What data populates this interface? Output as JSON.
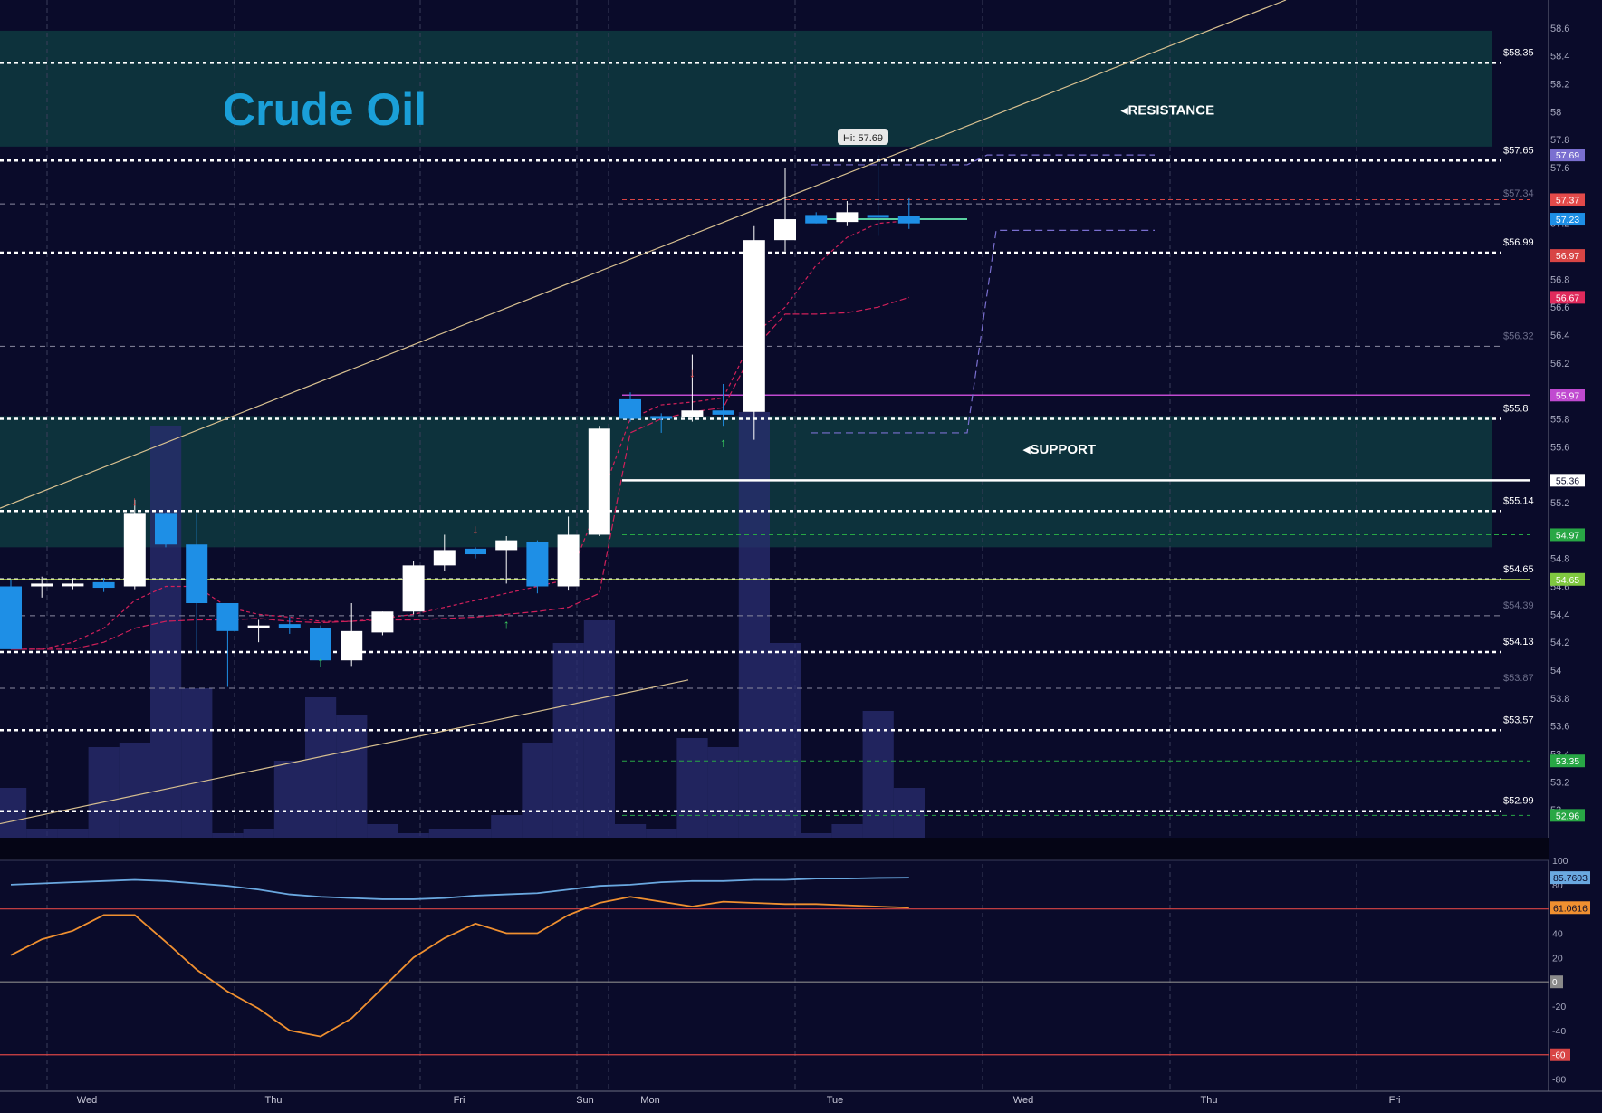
{
  "title": "Crude Oil",
  "zones": [
    {
      "label": "RESISTANCE",
      "from": 57.75,
      "to": 58.58,
      "fill": "#0e3a40"
    },
    {
      "label": "SUPPORT",
      "from": 54.88,
      "to": 55.82,
      "fill": "#0e3a40"
    }
  ],
  "price_axis": {
    "min": 52.8,
    "max": 58.8,
    "ticks": [
      53,
      53.2,
      53.4,
      53.6,
      53.8,
      54,
      54.2,
      54.4,
      54.6,
      54.8,
      55.2,
      55.6,
      55.8,
      56.2,
      56.4,
      56.6,
      56.8,
      57.2,
      57.6,
      57.8,
      58,
      58.2,
      58.4,
      58.6
    ]
  },
  "level_lines": [
    {
      "value": 58.35,
      "label": "$58.35",
      "style": "dotted-white"
    },
    {
      "value": 57.65,
      "label": "$57.65",
      "style": "dotted-white"
    },
    {
      "value": 56.99,
      "label": "$56.99",
      "style": "dotted-white"
    },
    {
      "value": 55.8,
      "label": "$55.8",
      "style": "dotted-white"
    },
    {
      "value": 55.14,
      "label": "$55.14",
      "style": "dotted-white"
    },
    {
      "value": 54.65,
      "label": "$54.65",
      "style": "dotted-white"
    },
    {
      "value": 54.13,
      "label": "$54.13",
      "style": "dotted-white"
    },
    {
      "value": 53.57,
      "label": "$53.57",
      "style": "dotted-white"
    },
    {
      "value": 52.99,
      "label": "$52.99",
      "style": "dotted-white"
    },
    {
      "value": 57.34,
      "label": "$57.34",
      "style": "dashed-gray"
    },
    {
      "value": 56.32,
      "label": "$56.32",
      "style": "dashed-gray"
    },
    {
      "value": 54.39,
      "label": "$54.39",
      "style": "dashed-gray"
    },
    {
      "value": 53.87,
      "label": "$53.87",
      "style": "dashed-gray"
    }
  ],
  "price_tags": [
    {
      "value": 57.69,
      "label": "57.69",
      "color": "#7a6fd0"
    },
    {
      "value": 57.37,
      "label": "57.37",
      "color": "#e34a4a"
    },
    {
      "value": 57.23,
      "label": "57.23",
      "color": "#1e8fe6"
    },
    {
      "value": 56.97,
      "label": "56.97",
      "color": "#d84545"
    },
    {
      "value": 56.67,
      "label": "56.67",
      "color": "#e02a5c"
    },
    {
      "value": 55.97,
      "label": "55.97",
      "color": "#c04ad0"
    },
    {
      "value": 55.36,
      "label": "55.36",
      "color": "#0a0b2a"
    },
    {
      "value": 54.97,
      "label": "54.97",
      "color": "#28a745"
    },
    {
      "value": 54.65,
      "label": "54.65",
      "color": "#7fc840"
    },
    {
      "value": 53.35,
      "label": "53.35",
      "color": "#28a745"
    },
    {
      "value": 52.96,
      "label": "52.96",
      "color": "#28a745"
    }
  ],
  "high_label": "Hi: 57.69",
  "time_labels": [
    "Wed",
    "Thu",
    "Fri",
    "Sun",
    "Mon",
    "Tue",
    "Wed",
    "Thu",
    "Fri"
  ],
  "chart_data": {
    "type": "candlestick",
    "candles": [
      {
        "o": 54.6,
        "h": 54.65,
        "l": 54.15,
        "c": 54.15
      },
      {
        "o": 54.6,
        "h": 54.67,
        "l": 54.52,
        "c": 54.62
      },
      {
        "o": 54.62,
        "h": 54.66,
        "l": 54.58,
        "c": 54.62
      },
      {
        "o": 54.63,
        "h": 54.66,
        "l": 54.56,
        "c": 54.59
      },
      {
        "o": 54.6,
        "h": 55.22,
        "l": 54.58,
        "c": 55.12
      },
      {
        "o": 55.12,
        "h": 55.13,
        "l": 54.88,
        "c": 54.9
      },
      {
        "o": 54.9,
        "h": 55.12,
        "l": 54.12,
        "c": 54.48
      },
      {
        "o": 54.48,
        "h": 54.48,
        "l": 53.88,
        "c": 54.28
      },
      {
        "o": 54.3,
        "h": 54.36,
        "l": 54.2,
        "c": 54.32
      },
      {
        "o": 54.33,
        "h": 54.38,
        "l": 54.26,
        "c": 54.3
      },
      {
        "o": 54.3,
        "h": 54.32,
        "l": 54.02,
        "c": 54.07
      },
      {
        "o": 54.07,
        "h": 54.48,
        "l": 54.03,
        "c": 54.28
      },
      {
        "o": 54.27,
        "h": 54.42,
        "l": 54.25,
        "c": 54.42
      },
      {
        "o": 54.42,
        "h": 54.78,
        "l": 54.4,
        "c": 54.75
      },
      {
        "o": 54.75,
        "h": 54.97,
        "l": 54.71,
        "c": 54.86
      },
      {
        "o": 54.87,
        "h": 54.88,
        "l": 54.8,
        "c": 54.83
      },
      {
        "o": 54.86,
        "h": 54.96,
        "l": 54.62,
        "c": 54.93
      },
      {
        "o": 54.92,
        "h": 54.93,
        "l": 54.55,
        "c": 54.6
      },
      {
        "o": 54.6,
        "h": 55.1,
        "l": 54.57,
        "c": 54.97
      },
      {
        "o": 54.97,
        "h": 55.75,
        "l": 54.96,
        "c": 55.73
      },
      {
        "o": 55.94,
        "h": 55.99,
        "l": 55.78,
        "c": 55.8
      },
      {
        "o": 55.82,
        "h": 55.84,
        "l": 55.7,
        "c": 55.8
      },
      {
        "o": 55.81,
        "h": 56.26,
        "l": 55.78,
        "c": 55.86
      },
      {
        "o": 55.86,
        "h": 56.05,
        "l": 55.75,
        "c": 55.83
      },
      {
        "o": 55.85,
        "h": 57.18,
        "l": 55.65,
        "c": 57.08
      },
      {
        "o": 57.08,
        "h": 57.6,
        "l": 57.0,
        "c": 57.23
      },
      {
        "o": 57.26,
        "h": 57.28,
        "l": 57.2,
        "c": 57.2
      },
      {
        "o": 57.21,
        "h": 57.36,
        "l": 57.18,
        "c": 57.28
      },
      {
        "o": 57.26,
        "h": 57.69,
        "l": 57.11,
        "c": 57.24
      },
      {
        "o": 57.25,
        "h": 57.38,
        "l": 57.16,
        "c": 57.2
      }
    ],
    "volume": [
      55,
      10,
      10,
      100,
      105,
      455,
      165,
      5,
      10,
      85,
      155,
      135,
      15,
      5,
      10,
      10,
      25,
      105,
      215,
      240,
      15,
      10,
      110,
      100,
      470,
      215,
      5,
      15,
      140,
      55
    ],
    "oscillator_slow": {
      "name": "85.7603",
      "values": [
        80,
        81,
        82,
        83,
        84,
        83,
        81,
        79,
        76,
        72,
        70,
        69,
        68,
        68,
        69,
        71,
        72,
        73,
        76,
        79,
        80,
        82,
        83,
        83,
        84,
        84,
        85,
        85,
        85.5,
        85.76
      ]
    },
    "oscillator_fast": {
      "name": "61.0616",
      "values": [
        22,
        35,
        42,
        55,
        55,
        33,
        10,
        -8,
        -22,
        -40,
        -45,
        -30,
        -5,
        20,
        36,
        48,
        40,
        40,
        55,
        65,
        70,
        66,
        62,
        66,
        65,
        64,
        64,
        63,
        62,
        61.06
      ]
    },
    "oscillator_levels": [
      {
        "value": 60,
        "color": "#d84545",
        "label": ""
      },
      {
        "value": 0,
        "color": "#8a8a8a",
        "label": "0"
      },
      {
        "value": -60,
        "color": "#d84545",
        "label": "-60"
      }
    ],
    "oscillator_axis": {
      "min": -90,
      "max": 100,
      "ticks": [
        100,
        80,
        40,
        20,
        -20,
        -40,
        -80
      ]
    }
  }
}
